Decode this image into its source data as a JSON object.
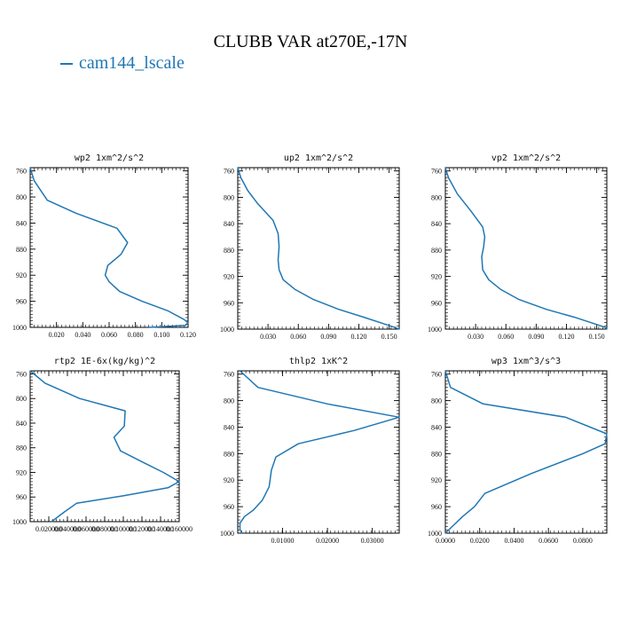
{
  "title": "CLUBB VAR at270E,-17N",
  "legend": {
    "label": "cam144_lscale",
    "color": "#1f77b4"
  },
  "chart_data": [
    {
      "type": "line",
      "title": "wp2  1xm^2/s^2",
      "xlim": [
        0.0,
        0.12
      ],
      "ylim": [
        1000,
        755
      ],
      "xticks": [
        0.02,
        0.04,
        0.06,
        0.08,
        0.1,
        0.12
      ],
      "xtick_labels": [
        "0.020",
        "0.040",
        "0.060",
        "0.080",
        "0.100",
        "0.120"
      ],
      "yticks": [
        760,
        800,
        840,
        880,
        920,
        960,
        1000
      ],
      "series": [
        {
          "x": [
            0.0,
            0.003,
            0.013,
            0.035,
            0.066,
            0.074,
            0.069,
            0.059,
            0.057,
            0.06,
            0.068,
            0.085,
            0.105,
            0.117,
            0.12,
            0.118,
            0.09
          ],
          "y": [
            755,
            775,
            805,
            825,
            848,
            870,
            888,
            905,
            920,
            930,
            945,
            960,
            975,
            988,
            993,
            997,
            1000
          ]
        }
      ]
    },
    {
      "type": "line",
      "title": "up2  1xm^2/s^2",
      "xlim": [
        0.0,
        0.16
      ],
      "ylim": [
        1000,
        755
      ],
      "xticks": [
        0.03,
        0.06,
        0.09,
        0.12,
        0.15
      ],
      "xtick_labels": [
        "0.030",
        "0.060",
        "0.090",
        "0.120",
        "0.150"
      ],
      "yticks": [
        760,
        800,
        840,
        880,
        920,
        960,
        1000
      ],
      "series": [
        {
          "x": [
            0.0,
            0.003,
            0.01,
            0.02,
            0.035,
            0.04,
            0.041,
            0.04,
            0.041,
            0.045,
            0.057,
            0.075,
            0.1,
            0.125,
            0.145,
            0.155,
            0.16
          ],
          "y": [
            755,
            770,
            790,
            810,
            835,
            855,
            875,
            895,
            910,
            925,
            940,
            955,
            970,
            982,
            992,
            997,
            1000
          ]
        }
      ]
    },
    {
      "type": "line",
      "title": "vp2  1xm^2/s^2",
      "xlim": [
        0.0,
        0.16
      ],
      "ylim": [
        1000,
        755
      ],
      "xticks": [
        0.03,
        0.06,
        0.09,
        0.12,
        0.15
      ],
      "xtick_labels": [
        "0.030",
        "0.060",
        "0.090",
        "0.120",
        "0.150"
      ],
      "yticks": [
        760,
        800,
        840,
        880,
        920,
        960,
        1000
      ],
      "series": [
        {
          "x": [
            0.0,
            0.003,
            0.012,
            0.025,
            0.037,
            0.039,
            0.038,
            0.036,
            0.037,
            0.043,
            0.055,
            0.073,
            0.1,
            0.128,
            0.148,
            0.158,
            0.16
          ],
          "y": [
            755,
            770,
            795,
            820,
            845,
            860,
            875,
            890,
            910,
            925,
            940,
            955,
            970,
            982,
            992,
            997,
            1000
          ]
        }
      ]
    },
    {
      "type": "line",
      "title": "rtp2  1E-6x(kg/kg)^2",
      "xlim": [
        0.0,
        0.16
      ],
      "ylim": [
        1000,
        755
      ],
      "xticks": [
        0.02,
        0.04,
        0.06,
        0.08,
        0.1,
        0.12,
        0.14,
        0.16
      ],
      "xtick_labels": [
        "0.020000",
        "0.040000",
        "0.060000",
        "0.080000",
        "0.100000",
        "0.120000",
        "0.140000",
        "0.160000"
      ],
      "yticks": [
        760,
        800,
        840,
        880,
        920,
        960,
        1000
      ],
      "series": [
        {
          "x": [
            0.0,
            0.016,
            0.053,
            0.102,
            0.101,
            0.09,
            0.097,
            0.123,
            0.143,
            0.16,
            0.148,
            0.1,
            0.05,
            0.036,
            0.023
          ],
          "y": [
            755,
            775,
            800,
            820,
            845,
            863,
            885,
            905,
            920,
            935,
            945,
            958,
            970,
            985,
            1000
          ]
        }
      ]
    },
    {
      "type": "line",
      "title": "thlp2  1xK^2",
      "xlim": [
        0.0,
        0.036
      ],
      "ylim": [
        1000,
        755
      ],
      "xticks": [
        0.01,
        0.02,
        0.03
      ],
      "xtick_labels": [
        "0.01000",
        "0.02000",
        "0.03000"
      ],
      "yticks": [
        760,
        800,
        840,
        880,
        920,
        960,
        1000
      ],
      "series": [
        {
          "x": [
            0.0005,
            0.0045,
            0.02,
            0.036,
            0.026,
            0.0135,
            0.0085,
            0.0075,
            0.007,
            0.0055,
            0.0035,
            0.0015,
            0.0005,
            0.0005,
            0.001
          ],
          "y": [
            755,
            780,
            805,
            825,
            845,
            865,
            885,
            905,
            930,
            950,
            965,
            975,
            985,
            995,
            1000
          ]
        }
      ]
    },
    {
      "type": "line",
      "title": "wp3  1xm^3/s^3",
      "xlim": [
        0.0,
        0.094
      ],
      "ylim": [
        1000,
        755
      ],
      "xticks": [
        0.0,
        0.02,
        0.04,
        0.06,
        0.08
      ],
      "xtick_labels": [
        "0.0000",
        "0.0200",
        "0.0400",
        "0.0600",
        "0.0800"
      ],
      "yticks": [
        760,
        800,
        840,
        880,
        920,
        960,
        1000
      ],
      "series": [
        {
          "x": [
            0.0,
            0.003,
            0.022,
            0.07,
            0.094,
            0.093,
            0.08,
            0.05,
            0.023,
            0.017,
            0.01,
            0.004,
            0.0
          ],
          "y": [
            755,
            780,
            805,
            825,
            850,
            865,
            880,
            910,
            940,
            960,
            975,
            990,
            1000
          ]
        }
      ]
    }
  ]
}
